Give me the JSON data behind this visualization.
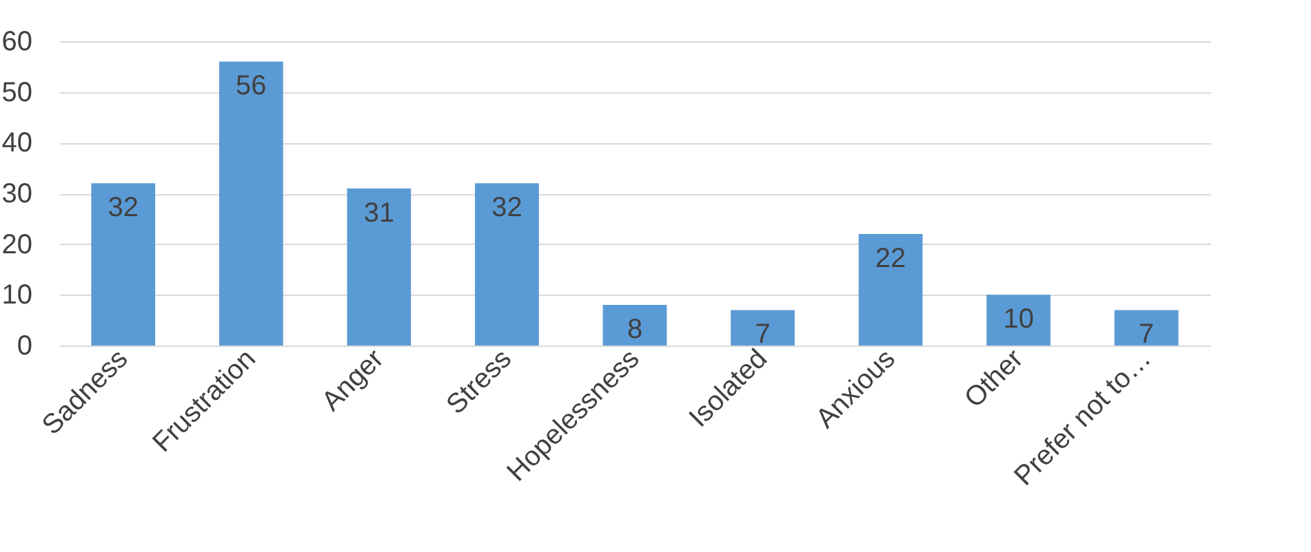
{
  "chart_data": {
    "type": "bar",
    "categories": [
      "Sadness",
      "Frustration",
      "Anger",
      "Stress",
      "Hopelessness",
      "Isolated",
      "Anxious",
      "Other",
      "Prefer not to…"
    ],
    "values": [
      32,
      56,
      31,
      32,
      8,
      7,
      22,
      10,
      7
    ],
    "color": "#5b9bd5",
    "ylim": [
      0,
      60
    ],
    "yticks": [
      0,
      10,
      20,
      30,
      40,
      50,
      60
    ],
    "grid": "y",
    "data_labels": true
  }
}
